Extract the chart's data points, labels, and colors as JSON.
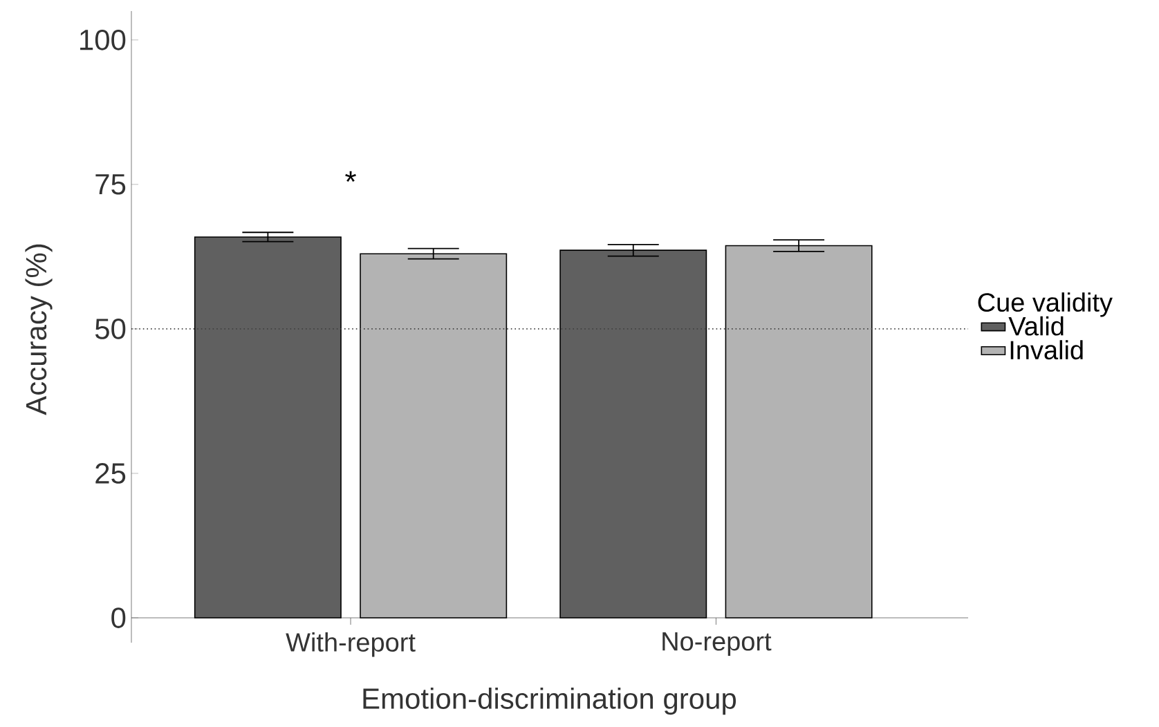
{
  "chart_data": {
    "type": "bar",
    "xlabel": "Emotion-discrimination group",
    "ylabel": "Accuracy (%)",
    "legend_title": "Cue validity",
    "legend": "right",
    "categories": [
      "With-report",
      "No-report"
    ],
    "series": [
      {
        "name": "Valid",
        "color": "#606060",
        "values": [
          65.9,
          63.6
        ],
        "errors": [
          0.8,
          1.0
        ]
      },
      {
        "name": "Invalid",
        "color": "#b3b3b3",
        "values": [
          63.0,
          64.4
        ],
        "errors": [
          0.9,
          1.0
        ]
      }
    ],
    "ylim": [
      -4.3,
      105
    ],
    "yticks": [
      0,
      25,
      50,
      75,
      100
    ],
    "ref_lines": [
      {
        "axis": "y",
        "value": 50,
        "line_style": "dotted",
        "color": "#404040"
      }
    ],
    "annotations": [
      "*"
    ]
  }
}
